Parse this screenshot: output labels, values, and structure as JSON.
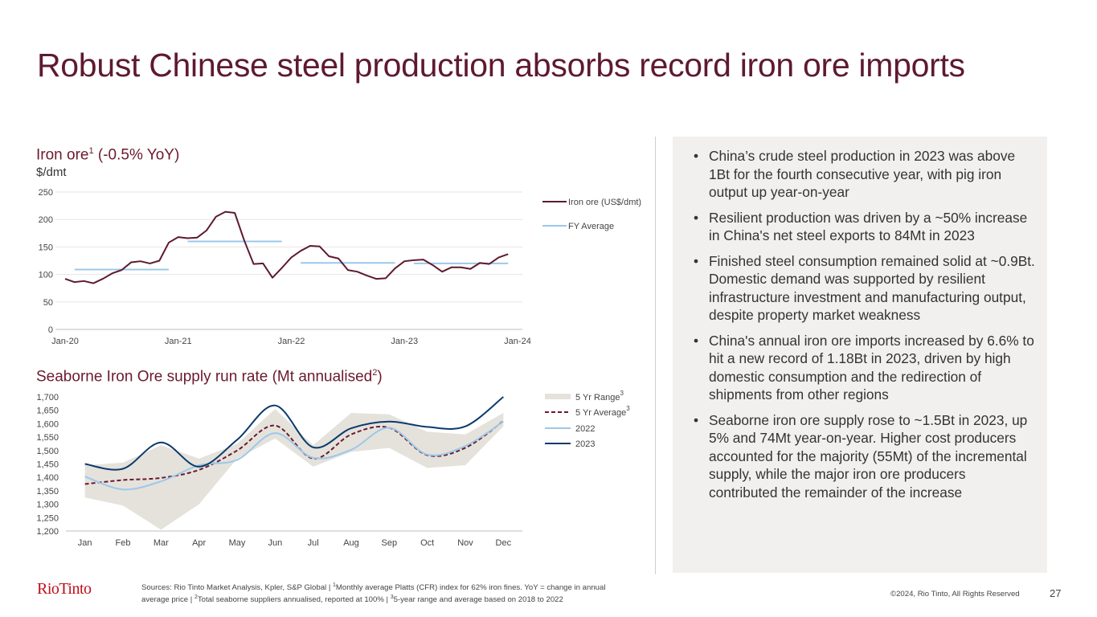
{
  "slide": {
    "title": "Robust Chinese steel production absorbs record iron ore imports",
    "page_number": "27",
    "copyright": "©2024, Rio Tinto, All Rights Reserved",
    "logo_text": "RioTinto",
    "footnote": {
      "part1": "Sources: Rio Tinto Market Analysis, Kpler, S&P Global | ",
      "sup1": "1",
      "part2": "Monthly average Platts (CFR) index for 62% iron fines. YoY = change in annual average price | ",
      "sup2": "2",
      "part3": "Total seaborne suppliers annualised, reported at 100% | ",
      "sup3": "3",
      "part4": "5-year range and average based on 2018 to 2022"
    }
  },
  "chart1_header": {
    "title_main": "Iron ore",
    "title_sup": "1",
    "title_rest": " (-0.5% YoY)",
    "unit": "$/dmt"
  },
  "chart2_header": {
    "title_main": "Seaborne Iron Ore supply run rate (Mt annualised",
    "title_sup": "2",
    "title_rest": ")"
  },
  "bullets": [
    "China’s crude steel production in 2023 was above 1Bt for the fourth consecutive year, with pig iron output up year-on-year",
    "Resilient production was driven by a ~50% increase in China's net steel exports to 84Mt in 2023",
    "Finished steel consumption remained solid at ~0.9Bt. Domestic demand was supported by resilient infrastructure investment and manufacturing output, despite property market weakness",
    "China's annual iron ore imports increased by 6.6% to hit a new record of 1.18Bt in 2023, driven by high domestic consumption and the redirection of shipments from other regions",
    "Seaborne iron ore supply rose to ~1.5Bt in 2023, up 5% and 74Mt year-on-year. Higher cost producers accounted for the majority (55Mt) of the incremental supply, while the major iron ore producers contributed the remainder of the increase"
  ],
  "chart_data": [
    {
      "type": "line",
      "title": "Iron ore (-0.5% YoY)",
      "ylabel": "$/dmt",
      "ylim": [
        0,
        250
      ],
      "yticks": [
        0,
        50,
        100,
        150,
        200,
        250
      ],
      "xlim": [
        0,
        48
      ],
      "xticks": [
        {
          "pos": 0,
          "label": "Jan-20"
        },
        {
          "pos": 12,
          "label": "Jan-21"
        },
        {
          "pos": 24,
          "label": "Jan-22"
        },
        {
          "pos": 36,
          "label": "Jan-23"
        },
        {
          "pos": 48,
          "label": "Jan-24"
        }
      ],
      "series": [
        {
          "name": "Iron ore (US$/dmt)",
          "color": "#5e1a2f",
          "x": [
            0,
            1,
            2,
            3,
            4,
            5,
            6,
            7,
            8,
            9,
            10,
            11,
            12,
            13,
            14,
            15,
            16,
            17,
            18,
            19,
            20,
            21,
            22,
            23,
            24,
            25,
            26,
            27,
            28,
            29,
            30,
            31,
            32,
            33,
            34,
            35,
            36,
            37,
            38,
            39,
            40,
            41,
            42,
            43,
            44,
            45,
            46,
            47
          ],
          "values": [
            92,
            86,
            88,
            84,
            92,
            102,
            108,
            122,
            124,
            120,
            125,
            158,
            168,
            166,
            167,
            180,
            205,
            214,
            212,
            162,
            119,
            120,
            94,
            112,
            131,
            143,
            152,
            151,
            133,
            129,
            108,
            105,
            98,
            92,
            93,
            111,
            124,
            126,
            127,
            117,
            105,
            113,
            113,
            110,
            121,
            119,
            131,
            137
          ]
        },
        {
          "name": "FY Average",
          "color": "#9cc8ea",
          "segments": [
            {
              "x0": 1,
              "x1": 11,
              "value": 109
            },
            {
              "x0": 13,
              "x1": 23,
              "value": 160
            },
            {
              "x0": 25,
              "x1": 35,
              "value": 121
            },
            {
              "x0": 37,
              "x1": 47,
              "value": 120
            }
          ]
        }
      ],
      "legend": [
        "Iron ore (US$/dmt)",
        "FY Average"
      ],
      "legend_position": "right"
    },
    {
      "type": "line",
      "title": "Seaborne Iron Ore supply run rate (Mt annualised)",
      "ylim": [
        1200,
        1700
      ],
      "yticks": [
        1200,
        1250,
        1300,
        1350,
        1400,
        1450,
        1500,
        1550,
        1600,
        1650,
        1700
      ],
      "ytick_labels": [
        "1,200",
        "1,250",
        "1,300",
        "1,350",
        "1,400",
        "1,450",
        "1,500",
        "1,550",
        "1,600",
        "1,650",
        "1,700"
      ],
      "categories": [
        "Jan",
        "Feb",
        "Mar",
        "Apr",
        "May",
        "Jun",
        "Jul",
        "Aug",
        "Sep",
        "Oct",
        "Nov",
        "Dec"
      ],
      "band": {
        "name": "5 Yr Range",
        "color": "#e5e2dc",
        "upper": [
          1445,
          1455,
          1520,
          1470,
          1525,
          1655,
          1520,
          1640,
          1635,
          1570,
          1560,
          1640
        ],
        "lower": [
          1325,
          1295,
          1205,
          1300,
          1470,
          1545,
          1440,
          1495,
          1510,
          1435,
          1445,
          1590
        ]
      },
      "series": [
        {
          "name": "5 Yr Average",
          "color": "#6b1a2e",
          "dashed": true,
          "values": [
            1375,
            1390,
            1398,
            1428,
            1500,
            1593,
            1470,
            1560,
            1585,
            1483,
            1510,
            1610
          ]
        },
        {
          "name": "2022",
          "color": "#9cc8ea",
          "values": [
            1403,
            1355,
            1385,
            1445,
            1465,
            1565,
            1473,
            1503,
            1585,
            1485,
            1517,
            1608
          ]
        },
        {
          "name": "2023",
          "color": "#0b3a6b",
          "values": [
            1450,
            1432,
            1530,
            1440,
            1540,
            1668,
            1512,
            1583,
            1608,
            1588,
            1590,
            1700
          ]
        }
      ],
      "legend": [
        {
          "label": "5 Yr Range",
          "sup": "3"
        },
        {
          "label": "5 Yr Average",
          "sup": "3"
        },
        {
          "label": "2022",
          "sup": ""
        },
        {
          "label": "2023",
          "sup": ""
        }
      ],
      "legend_position": "right"
    }
  ]
}
